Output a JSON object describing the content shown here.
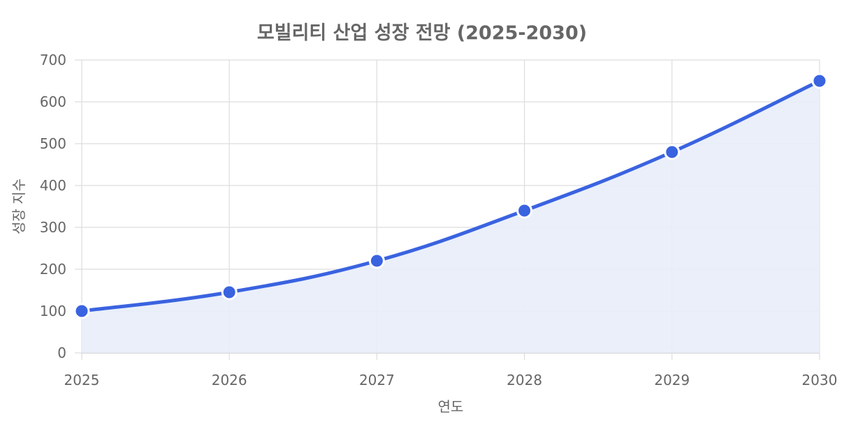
{
  "chart_data": {
    "type": "line",
    "title": "모빌리티 산업 성장 전망 (2025-2030)",
    "xlabel": "연도",
    "ylabel": "성장 지수",
    "categories": [
      "2025",
      "2026",
      "2027",
      "2028",
      "2029",
      "2030"
    ],
    "values": [
      100,
      145,
      220,
      340,
      480,
      650
    ],
    "ylim": [
      0,
      700
    ],
    "yticks": [
      0,
      100,
      200,
      300,
      400,
      500,
      600,
      700
    ],
    "grid": true,
    "area_fill": true,
    "line_color": "#3a63e0",
    "fill_color": "#e8edf9",
    "point_color": "#3a63e0",
    "grid_color": "#dddddd"
  }
}
